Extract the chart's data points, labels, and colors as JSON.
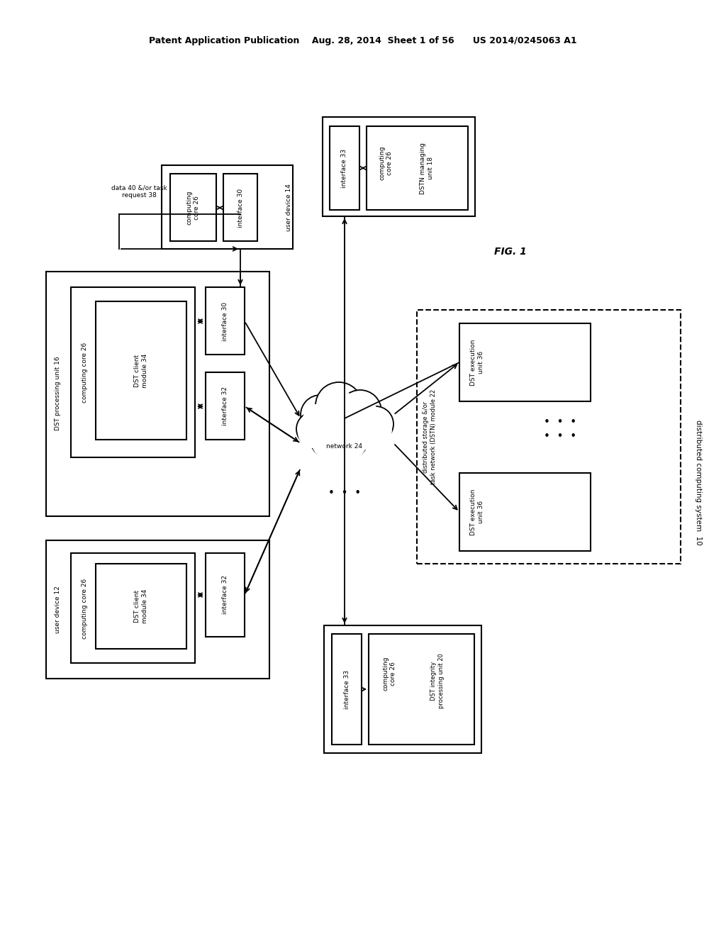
{
  "bg_color": "#ffffff",
  "header": "Patent Application Publication    Aug. 28, 2014  Sheet 1 of 56      US 2014/0245063 A1",
  "fig_label": "FIG. 1",
  "right_label": "distributed computing system  10"
}
